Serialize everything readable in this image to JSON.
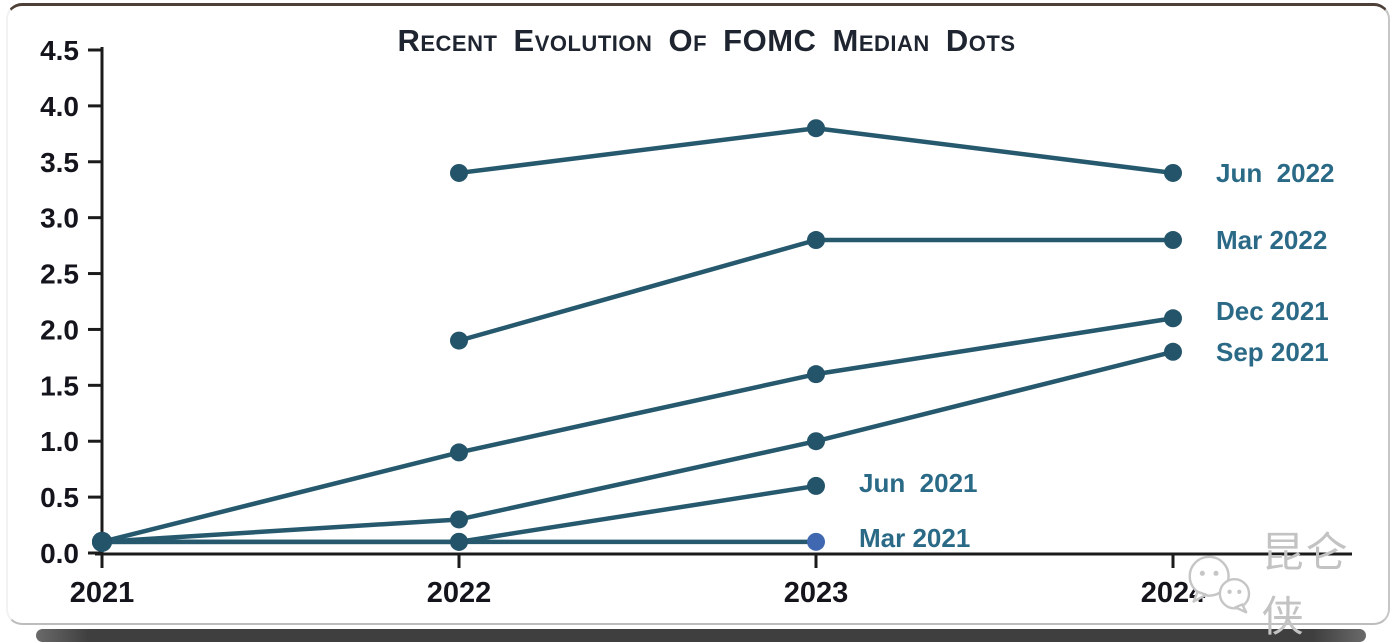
{
  "watermark": {
    "text": "昆仑侠",
    "icon": "wechat-icon"
  },
  "chart_data": {
    "type": "line",
    "title": "Recent Evolution Of FOMC Median Dots",
    "xlabel": "",
    "ylabel": "",
    "x_categories": [
      "2021",
      "2022",
      "2023",
      "2024"
    ],
    "y_ticks": [
      "4.5",
      "4.0",
      "3.5",
      "3.0",
      "2.5",
      "2.0",
      "1.5",
      "1.0",
      "0.5",
      "0.0"
    ],
    "ylim": [
      0.0,
      4.5
    ],
    "grid": false,
    "legend_position": "inline-right-of-last-point",
    "series": [
      {
        "name": "Jun 2022",
        "label": "Jun  2022",
        "x": [
          2022,
          2023,
          2024
        ],
        "values": [
          3.4,
          3.8,
          3.4
        ]
      },
      {
        "name": "Mar 2022",
        "label": "Mar 2022",
        "x": [
          2022,
          2023,
          2024
        ],
        "values": [
          1.9,
          2.8,
          2.8
        ]
      },
      {
        "name": "Dec 2021",
        "label": "Dec 2021",
        "x": [
          2021,
          2022,
          2023,
          2024
        ],
        "values": [
          0.1,
          0.9,
          1.6,
          2.1
        ]
      },
      {
        "name": "Sep 2021",
        "label": "Sep 2021",
        "x": [
          2021,
          2022,
          2023,
          2024
        ],
        "values": [
          0.1,
          0.3,
          1.0,
          1.8
        ]
      },
      {
        "name": "Jun 2021",
        "label": "Jun  2021",
        "x": [
          2021,
          2022,
          2023
        ],
        "values": [
          0.1,
          0.1,
          0.6
        ]
      },
      {
        "name": "Mar 2021",
        "label": "Mar 2021",
        "x": [
          2021,
          2022,
          2023
        ],
        "values": [
          0.1,
          0.1,
          0.1
        ]
      }
    ],
    "colors": {
      "line": "#26596e",
      "marker": "#245469",
      "series_label": "#2b6a87",
      "axis": "#1b1b1b",
      "tick_label": "#14141c",
      "title": "#1f2530",
      "mar2021_end_dot": "#4068b0"
    }
  }
}
